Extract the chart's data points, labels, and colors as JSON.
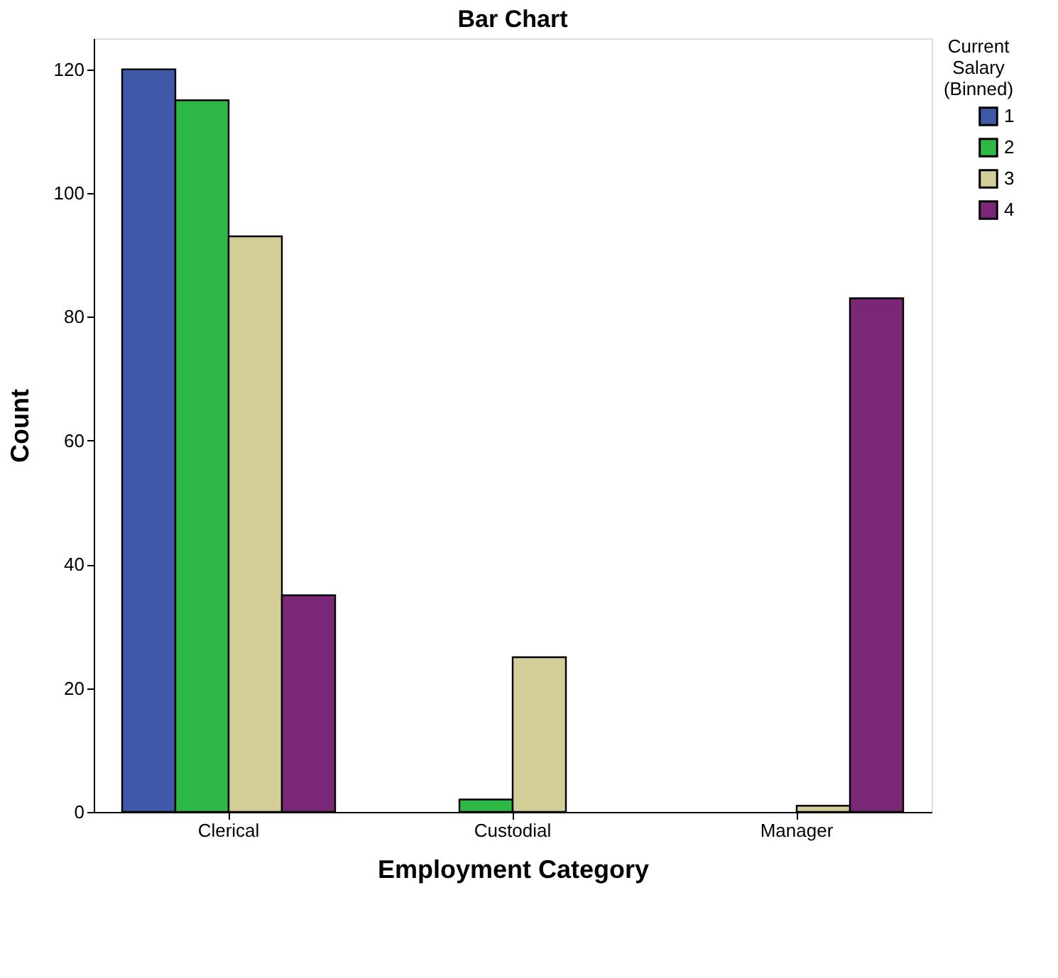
{
  "chart_data": {
    "type": "bar",
    "title": "Bar Chart",
    "xlabel": "Employment Category",
    "ylabel": "Count",
    "legend_title": "Current Salary (Binned)",
    "categories": [
      "Clerical",
      "Custodial",
      "Manager"
    ],
    "series": [
      {
        "name": "1",
        "color": "#3f58a8",
        "values": [
          120,
          null,
          null
        ]
      },
      {
        "name": "2",
        "color": "#2eb848",
        "values": [
          115,
          2,
          null
        ]
      },
      {
        "name": "3",
        "color": "#d3ce97",
        "values": [
          93,
          25,
          1
        ]
      },
      {
        "name": "4",
        "color": "#7a2778",
        "values": [
          35,
          null,
          83
        ]
      }
    ],
    "ylim": [
      0,
      125
    ],
    "yticks": [
      0,
      20,
      40,
      60,
      80,
      100,
      120
    ],
    "grid": false,
    "legend": "right"
  }
}
